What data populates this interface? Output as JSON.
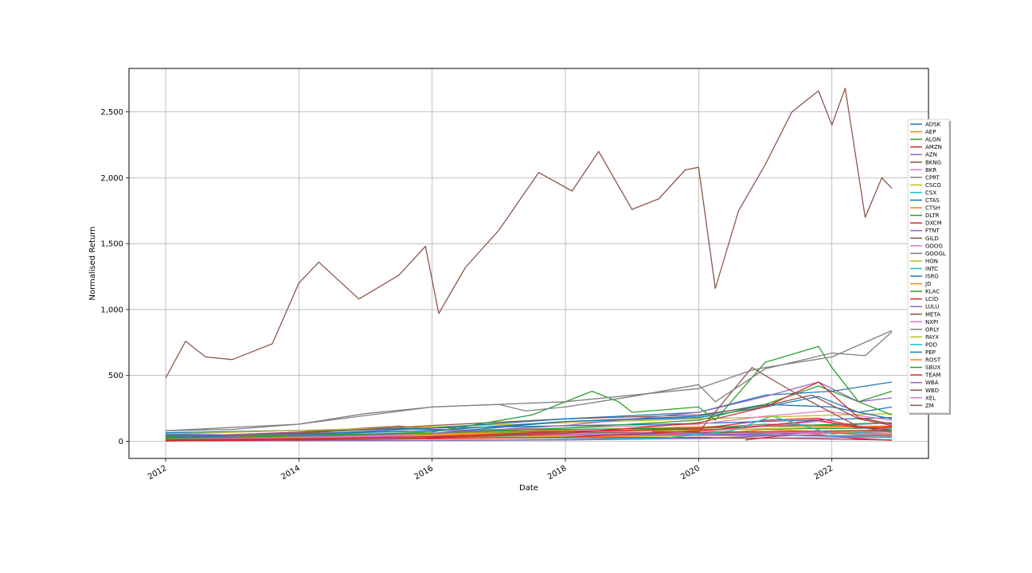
{
  "chart_data": {
    "type": "line",
    "title": "",
    "xlabel": "Date",
    "ylabel": "Normalised Return",
    "xlim": [
      2011.45,
      2023.45
    ],
    "ylim": [
      -130,
      2830
    ],
    "grid": true,
    "legend_position": "right",
    "x_ticks": [
      {
        "value": 2012,
        "label": "2012"
      },
      {
        "value": 2014,
        "label": "2014"
      },
      {
        "value": 2016,
        "label": "2016"
      },
      {
        "value": 2018,
        "label": "2018"
      },
      {
        "value": 2020,
        "label": "2020"
      },
      {
        "value": 2022,
        "label": "2022"
      }
    ],
    "y_ticks": [
      {
        "value": 0,
        "label": "0"
      },
      {
        "value": 500,
        "label": "500"
      },
      {
        "value": 1000,
        "label": "1,000"
      },
      {
        "value": 1500,
        "label": "1,500"
      },
      {
        "value": 2000,
        "label": "2,000"
      },
      {
        "value": 2500,
        "label": "2,500"
      }
    ],
    "series": [
      {
        "name": "ADSK",
        "color": "#1f77b4",
        "x": [
          2012.0,
          2014.0,
          2016.0,
          2018.0,
          2020.0,
          2021.0,
          2022.0,
          2022.9
        ],
        "y": [
          30,
          55,
          80,
          150,
          190,
          280,
          260,
          170
        ]
      },
      {
        "name": "AEP",
        "color": "#ff7f0e",
        "x": [
          2012.0,
          2016.0,
          2020.0,
          2022.9
        ],
        "y": [
          38,
          48,
          72,
          78
        ]
      },
      {
        "name": "ALGN",
        "color": "#2ca02c",
        "x": [
          2012.0,
          2014.0,
          2016.0,
          2017.5,
          2018.4,
          2018.8,
          2019.0,
          2020.0,
          2020.25,
          2021.0,
          2021.8,
          2022.0,
          2022.4,
          2022.9
        ],
        "y": [
          20,
          40,
          70,
          200,
          380,
          300,
          220,
          260,
          160,
          600,
          720,
          560,
          300,
          200
        ]
      },
      {
        "name": "AMZN",
        "color": "#d62728",
        "x": [
          2012.0,
          2014.0,
          2016.0,
          2018.0,
          2020.0,
          2021.0,
          2021.8,
          2022.4,
          2022.9
        ],
        "y": [
          10,
          20,
          35,
          75,
          95,
          160,
          175,
          110,
          85
        ]
      },
      {
        "name": "AZN",
        "color": "#9467bd",
        "x": [
          2012.0,
          2016.0,
          2020.0,
          2022.9
        ],
        "y": [
          30,
          40,
          50,
          70
        ]
      },
      {
        "name": "BKNG",
        "color": "#8c564b",
        "x": [
          2012.0,
          2012.3,
          2012.6,
          2013.0,
          2013.6,
          2014.0,
          2014.3,
          2014.9,
          2015.5,
          2015.9,
          2016.1,
          2016.5,
          2017.0,
          2017.6,
          2018.1,
          2018.5,
          2019.0,
          2019.4,
          2019.8,
          2020.0,
          2020.25,
          2020.6,
          2021.0,
          2021.4,
          2021.8,
          2022.0,
          2022.2,
          2022.5,
          2022.75,
          2022.9
        ],
        "y": [
          480,
          760,
          640,
          620,
          740,
          1200,
          1360,
          1080,
          1260,
          1480,
          970,
          1320,
          1600,
          2040,
          1900,
          2200,
          1760,
          1840,
          2060,
          2080,
          1160,
          1750,
          2100,
          2500,
          2660,
          2400,
          2680,
          1700,
          2000,
          1920
        ]
      },
      {
        "name": "BKR",
        "color": "#e377c2",
        "x": [
          2012.0,
          2016.0,
          2020.0,
          2022.9
        ],
        "y": [
          40,
          35,
          20,
          30
        ]
      },
      {
        "name": "CPRT",
        "color": "#7f7f7f",
        "x": [
          2012.0,
          2014.0,
          2016.0,
          2018.0,
          2020.0,
          2021.0,
          2022.0,
          2022.9
        ],
        "y": [
          5,
          15,
          30,
          70,
          100,
          130,
          120,
          140
        ]
      },
      {
        "name": "CSCO",
        "color": "#bcbd22",
        "x": [
          2012.0,
          2016.0,
          2020.0,
          2022.9
        ],
        "y": [
          18,
          28,
          42,
          42
        ]
      },
      {
        "name": "CSX",
        "color": "#17becf",
        "x": [
          2012.0,
          2016.0,
          2020.0,
          2022.9
        ],
        "y": [
          6,
          8,
          22,
          30
        ]
      },
      {
        "name": "CTAS",
        "color": "#1f77b4",
        "x": [
          2012.0,
          2014.0,
          2016.0,
          2018.0,
          2020.0,
          2021.0,
          2022.0,
          2022.9
        ],
        "y": [
          30,
          50,
          100,
          170,
          220,
          350,
          380,
          450
        ]
      },
      {
        "name": "CTSH",
        "color": "#ff7f0e",
        "x": [
          2012.0,
          2016.0,
          2020.0,
          2022.9
        ],
        "y": [
          30,
          60,
          65,
          58
        ]
      },
      {
        "name": "DLTR",
        "color": "#2ca02c",
        "x": [
          2012.0,
          2016.0,
          2020.0,
          2022.9
        ],
        "y": [
          40,
          80,
          100,
          140
        ]
      },
      {
        "name": "DXCM",
        "color": "#d62728",
        "x": [
          2012.0,
          2014.0,
          2016.0,
          2018.0,
          2020.0,
          2021.0,
          2021.8,
          2022.4,
          2022.9
        ],
        "y": [
          2,
          10,
          20,
          30,
          80,
          120,
          160,
          100,
          110
        ]
      },
      {
        "name": "FTNT",
        "color": "#9467bd",
        "x": [
          2012.0,
          2016.0,
          2018.0,
          2020.0,
          2021.0,
          2021.8,
          2022.4,
          2022.9
        ],
        "y": [
          4,
          6,
          10,
          22,
          40,
          70,
          50,
          48
        ]
      },
      {
        "name": "GILD",
        "color": "#8c564b",
        "x": [
          2012.0,
          2014.0,
          2015.5,
          2016.0,
          2018.0,
          2020.0,
          2022.9
        ],
        "y": [
          20,
          70,
          115,
          90,
          70,
          65,
          85
        ]
      },
      {
        "name": "GOOG",
        "color": "#e377c2",
        "x": [
          2012.0,
          2016.0,
          2018.0,
          2020.0,
          2021.8,
          2022.9
        ],
        "y": [
          16,
          36,
          55,
          70,
          150,
          90
        ]
      },
      {
        "name": "GOOGL",
        "color": "#7f7f7f",
        "x": [
          2012.0,
          2013.0,
          2014.0,
          2015.0,
          2016.0,
          2017.0,
          2017.4,
          2018.0,
          2019.0,
          2020.0,
          2020.25,
          2021.0,
          2022.0,
          2022.5,
          2022.9
        ],
        "y": [
          80,
          90,
          130,
          210,
          260,
          280,
          230,
          260,
          340,
          430,
          300,
          550,
          670,
          650,
          830
        ]
      },
      {
        "name": "HON",
        "color": "#bcbd22",
        "x": [
          2012.0,
          2016.0,
          2020.0,
          2022.9
        ],
        "y": [
          55,
          110,
          170,
          210
        ]
      },
      {
        "name": "INTC",
        "color": "#17becf",
        "x": [
          2012.0,
          2016.0,
          2020.0,
          2022.9
        ],
        "y": [
          25,
          33,
          60,
          27
        ]
      },
      {
        "name": "ISRG",
        "color": "#1f77b4",
        "x": [
          2012.0,
          2014.0,
          2016.0,
          2018.0,
          2020.0,
          2021.0,
          2021.8,
          2022.4,
          2022.9
        ],
        "y": [
          50,
          40,
          60,
          150,
          180,
          260,
          340,
          220,
          260
        ]
      },
      {
        "name": "JD",
        "color": "#ff7f0e",
        "x": [
          2014.4,
          2016.0,
          2018.0,
          2020.0,
          2021.0,
          2022.9
        ],
        "y": [
          25,
          25,
          30,
          50,
          90,
          55
        ]
      },
      {
        "name": "KLAC",
        "color": "#2ca02c",
        "x": [
          2012.0,
          2016.0,
          2018.0,
          2020.0,
          2021.0,
          2021.8,
          2022.4,
          2022.9
        ],
        "y": [
          45,
          60,
          100,
          160,
          280,
          420,
          300,
          380
        ]
      },
      {
        "name": "LCID",
        "color": "#d62728",
        "x": [
          2020.7,
          2021.2,
          2021.8,
          2022.4,
          2022.9
        ],
        "y": [
          10,
          40,
          50,
          20,
          8
        ]
      },
      {
        "name": "LULU",
        "color": "#9467bd",
        "x": [
          2012.0,
          2014.0,
          2016.0,
          2018.0,
          2020.0,
          2021.0,
          2021.8,
          2022.4,
          2022.9
        ],
        "y": [
          55,
          45,
          60,
          120,
          220,
          340,
          450,
          300,
          330
        ]
      },
      {
        "name": "META",
        "color": "#8c564b",
        "x": [
          2012.4,
          2014.0,
          2016.0,
          2018.0,
          2020.0,
          2021.0,
          2021.7,
          2022.4,
          2022.9
        ],
        "y": [
          35,
          60,
          120,
          170,
          200,
          270,
          350,
          170,
          120
        ]
      },
      {
        "name": "NXPI",
        "color": "#e377c2",
        "x": [
          2012.0,
          2014.0,
          2016.0,
          2018.0,
          2020.0,
          2021.0,
          2021.9,
          2022.9
        ],
        "y": [
          18,
          60,
          80,
          100,
          130,
          190,
          230,
          160
        ]
      },
      {
        "name": "ORLY",
        "color": "#7f7f7f",
        "x": [
          2012.0,
          2014.0,
          2016.0,
          2018.0,
          2020.0,
          2020.8,
          2021.0,
          2022.0,
          2022.9
        ],
        "y": [
          80,
          130,
          260,
          300,
          400,
          540,
          560,
          640,
          840
        ]
      },
      {
        "name": "PAYX",
        "color": "#bcbd22",
        "x": [
          2012.0,
          2016.0,
          2020.0,
          2022.9
        ],
        "y": [
          30,
          55,
          85,
          115
        ]
      },
      {
        "name": "PDD",
        "color": "#17becf",
        "x": [
          2018.6,
          2019.5,
          2020.5,
          2021.1,
          2022.0,
          2022.9
        ],
        "y": [
          20,
          25,
          80,
          190,
          55,
          80
        ]
      },
      {
        "name": "PEP",
        "color": "#1f77b4",
        "x": [
          2012.0,
          2016.0,
          2020.0,
          2022.9
        ],
        "y": [
          65,
          100,
          135,
          180
        ]
      },
      {
        "name": "ROST",
        "color": "#ff7f0e",
        "x": [
          2012.0,
          2016.0,
          2020.0,
          2022.9
        ],
        "y": [
          25,
          60,
          110,
          115
        ]
      },
      {
        "name": "SBUX",
        "color": "#2ca02c",
        "x": [
          2012.0,
          2016.0,
          2020.0,
          2022.9
        ],
        "y": [
          20,
          60,
          90,
          100
        ]
      },
      {
        "name": "TEAM",
        "color": "#d62728",
        "x": [
          2015.9,
          2018.0,
          2020.0,
          2021.0,
          2021.8,
          2022.4,
          2022.9
        ],
        "y": [
          25,
          60,
          140,
          260,
          450,
          180,
          130
        ]
      },
      {
        "name": "WBA",
        "color": "#9467bd",
        "x": [
          2012.0,
          2015.5,
          2018.0,
          2020.0,
          2022.9
        ],
        "y": [
          35,
          95,
          70,
          50,
          38
        ]
      },
      {
        "name": "WBD",
        "color": "#8c564b",
        "x": [
          2012.0,
          2016.0,
          2020.0,
          2022.9
        ],
        "y": [
          40,
          25,
          30,
          10
        ]
      },
      {
        "name": "XEL",
        "color": "#e377c2",
        "x": [
          2012.0,
          2016.0,
          2020.0,
          2022.9
        ],
        "y": [
          27,
          40,
          65,
          70
        ]
      },
      {
        "name": "ZM",
        "color": "#8c564b",
        "x": [
          2019.3,
          2020.0,
          2020.8,
          2021.5,
          2022.4,
          2022.9
        ],
        "y": [
          75,
          70,
          560,
          350,
          110,
          68
        ]
      }
    ]
  }
}
